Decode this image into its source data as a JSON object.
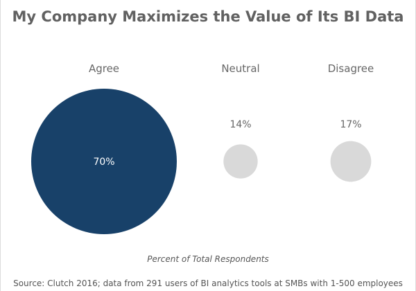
{
  "chart_data": {
    "type": "bubble",
    "title": "My Company Maximizes the Value of Its BI Data",
    "xlabel": "Percent of Total Respondents",
    "ylabel": "",
    "categories": [
      "Agree",
      "Neutral",
      "Disagree"
    ],
    "values": [
      70,
      14,
      17
    ],
    "value_labels": [
      "70%",
      "14%",
      "17%"
    ],
    "colors": [
      "#184169",
      "#d9d9d9",
      "#d9d9d9"
    ],
    "legend": "none",
    "grid": false
  },
  "source": "Source: Clutch 2016; data from 291 users of BI analytics tools at SMBs with 1-500 employees"
}
